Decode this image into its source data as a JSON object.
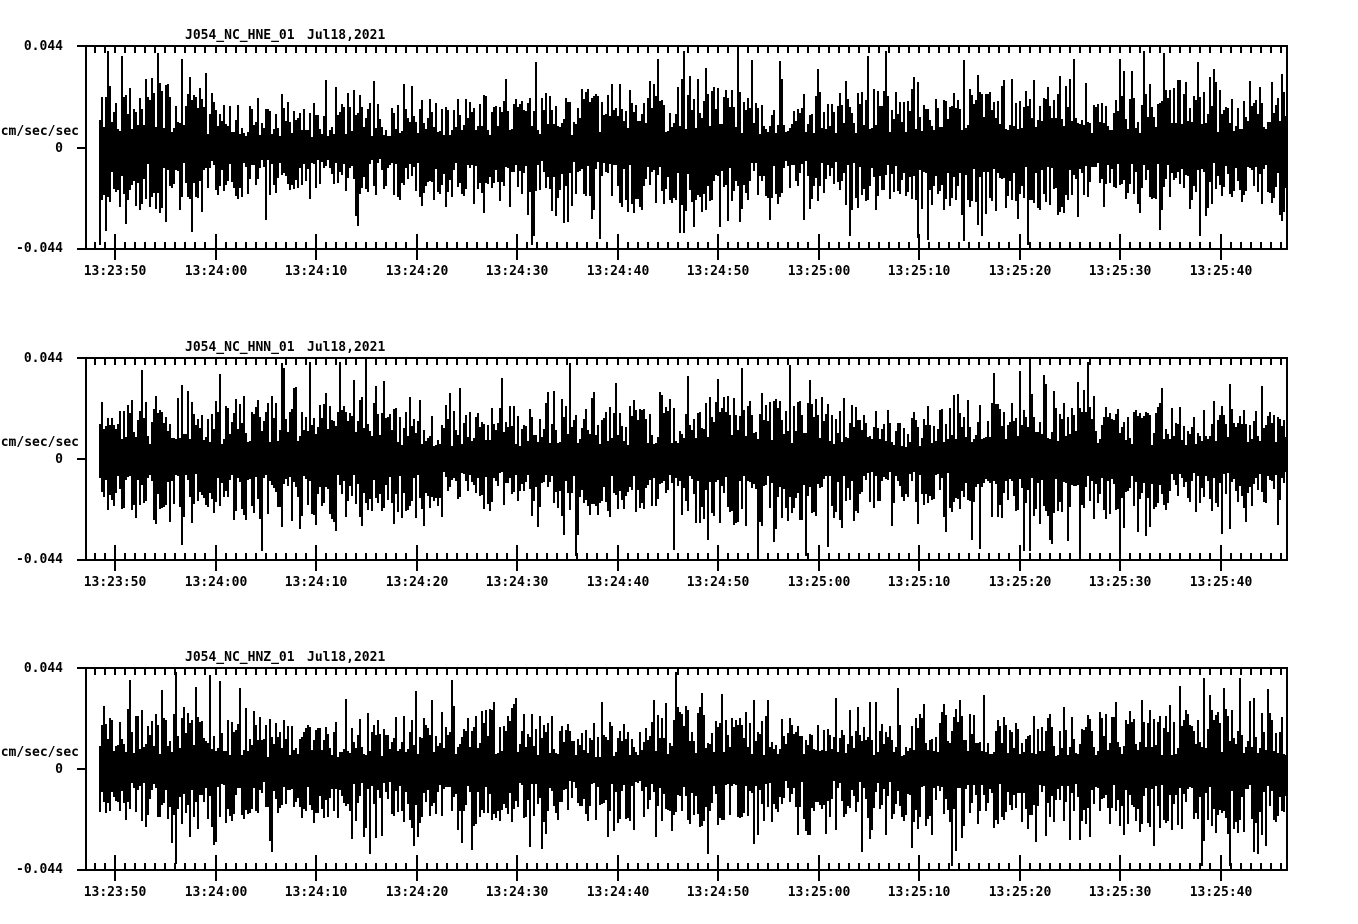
{
  "figure": {
    "background": "#ffffff",
    "ink": "#000000"
  },
  "panels": [
    {
      "station_label": "J054_NC_HNE_01",
      "date_label": "Jul18,2021",
      "units_label": "cm/sec/sec",
      "y_max_label": "0.044",
      "y_zero_label": "0",
      "y_min_label": "-0.044",
      "x_tick_labels": [
        "13:23:50",
        "13:24:00",
        "13:24:10",
        "13:24:20",
        "13:24:30",
        "13:24:40",
        "13:24:50",
        "13:25:00",
        "13:25:10",
        "13:25:20",
        "13:25:30",
        "13:25:40"
      ]
    },
    {
      "station_label": "J054_NC_HNN_01",
      "date_label": "Jul18,2021",
      "units_label": "cm/sec/sec",
      "y_max_label": "0.044",
      "y_zero_label": "0",
      "y_min_label": "-0.044",
      "x_tick_labels": [
        "13:23:50",
        "13:24:00",
        "13:24:10",
        "13:24:20",
        "13:24:30",
        "13:24:40",
        "13:24:50",
        "13:25:00",
        "13:25:10",
        "13:25:20",
        "13:25:30",
        "13:25:40"
      ]
    },
    {
      "station_label": "J054_NC_HNZ_01",
      "date_label": "Jul18,2021",
      "units_label": "cm/sec/sec",
      "y_max_label": "0.044",
      "y_zero_label": "0",
      "y_min_label": "-0.044",
      "x_tick_labels": [
        "13:23:50",
        "13:24:00",
        "13:24:10",
        "13:24:20",
        "13:24:30",
        "13:24:40",
        "13:24:50",
        "13:25:00",
        "13:25:10",
        "13:25:20",
        "13:25:30",
        "13:25:40"
      ]
    }
  ],
  "chart_data": [
    {
      "type": "line",
      "title": "J054_NC_HNE_01  Jul18,2021",
      "series_name": "J054_NC_HNE_01",
      "channel": "HNE",
      "date": "Jul18,2021",
      "ylabel": "cm/sec/sec",
      "ylim": [
        -0.044,
        0.044
      ],
      "yticks": [
        -0.044,
        0,
        0.044
      ],
      "x_tick_labels": [
        "13:23:50",
        "13:24:00",
        "13:24:10",
        "13:24:20",
        "13:24:30",
        "13:24:40",
        "13:24:50",
        "13:25:00",
        "13:25:10",
        "13:25:20",
        "13:25:30",
        "13:25:40"
      ],
      "x_start": "13:23:48",
      "x_end": "13:25:47",
      "x_major_interval_sec": 10,
      "x_minor_interval_sec": 1,
      "grid": false,
      "legend": "none",
      "signal": "continuous broadband acceleration noise",
      "approx_rms": 0.007,
      "approx_peak": 0.042,
      "amp_scale_start": 0.92,
      "amp_scale_end": 1.12,
      "seed": 118201
    },
    {
      "type": "line",
      "title": "J054_NC_HNN_01  Jul18,2021",
      "series_name": "J054_NC_HNN_01",
      "channel": "HNN",
      "date": "Jul18,2021",
      "ylabel": "cm/sec/sec",
      "ylim": [
        -0.044,
        0.044
      ],
      "yticks": [
        -0.044,
        0,
        0.044
      ],
      "x_tick_labels": [
        "13:23:50",
        "13:24:00",
        "13:24:10",
        "13:24:20",
        "13:24:30",
        "13:24:40",
        "13:24:50",
        "13:25:00",
        "13:25:10",
        "13:25:20",
        "13:25:30",
        "13:25:40"
      ],
      "x_start": "13:23:48",
      "x_end": "13:25:47",
      "x_major_interval_sec": 10,
      "x_minor_interval_sec": 1,
      "grid": false,
      "legend": "none",
      "signal": "continuous broadband acceleration noise",
      "approx_rms": 0.008,
      "approx_peak": 0.04,
      "amp_scale_start": 1.04,
      "amp_scale_end": 1.04,
      "seed": 118202
    },
    {
      "type": "line",
      "title": "J054_NC_HNZ_01  Jul18,2021",
      "series_name": "J054_NC_HNZ_01",
      "channel": "HNZ",
      "date": "Jul18,2021",
      "ylabel": "cm/sec/sec",
      "ylim": [
        -0.044,
        0.044
      ],
      "yticks": [
        -0.044,
        0,
        0.044
      ],
      "x_tick_labels": [
        "13:23:50",
        "13:24:00",
        "13:24:10",
        "13:24:20",
        "13:24:30",
        "13:24:40",
        "13:24:50",
        "13:25:00",
        "13:25:10",
        "13:25:20",
        "13:25:30",
        "13:25:40"
      ],
      "x_start": "13:23:48",
      "x_end": "13:25:47",
      "x_major_interval_sec": 10,
      "x_minor_interval_sec": 1,
      "grid": false,
      "legend": "none",
      "signal": "continuous broadband acceleration noise",
      "approx_rms": 0.008,
      "approx_peak": 0.041,
      "amp_scale_start": 1.0,
      "amp_scale_end": 1.0,
      "seed": 118203
    }
  ]
}
